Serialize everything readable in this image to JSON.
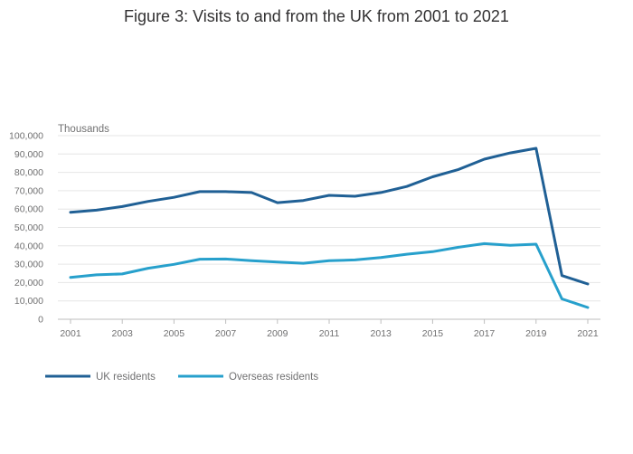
{
  "chart_data": {
    "type": "line",
    "title": "Figure 3: Visits to and from the UK from 2001 to 2021",
    "ylabel": "Thousands",
    "xlabel": "",
    "x": [
      2001,
      2002,
      2003,
      2004,
      2005,
      2006,
      2007,
      2008,
      2009,
      2010,
      2011,
      2012,
      2013,
      2014,
      2015,
      2016,
      2017,
      2018,
      2019,
      2020,
      2021
    ],
    "x_tick_labels": [
      "2001",
      "2003",
      "2005",
      "2007",
      "2009",
      "2011",
      "2013",
      "2015",
      "2017",
      "2019",
      "2021"
    ],
    "y_tick_labels": [
      "0",
      "10,000",
      "20,000",
      "30,000",
      "40,000",
      "50,000",
      "60,000",
      "70,000",
      "80,000",
      "90,000",
      "100,000"
    ],
    "xlim": [
      2001,
      2021
    ],
    "ylim": [
      0,
      100000
    ],
    "grid": true,
    "legend_position": "bottom-left",
    "series": [
      {
        "name": "UK residents",
        "color": "#206095",
        "values": [
          58300,
          59400,
          61400,
          64200,
          66400,
          69500,
          69500,
          69000,
          63500,
          64700,
          67500,
          67000,
          69000,
          72300,
          77600,
          81600,
          87200,
          90600,
          93100,
          23800,
          19200
        ]
      },
      {
        "name": "Overseas residents",
        "color": "#27a0cc",
        "values": [
          22800,
          24200,
          24700,
          27800,
          29900,
          32700,
          32800,
          31900,
          31200,
          30500,
          31900,
          32300,
          33600,
          35400,
          36800,
          39200,
          41200,
          40300,
          40900,
          11100,
          6400
        ]
      }
    ]
  }
}
